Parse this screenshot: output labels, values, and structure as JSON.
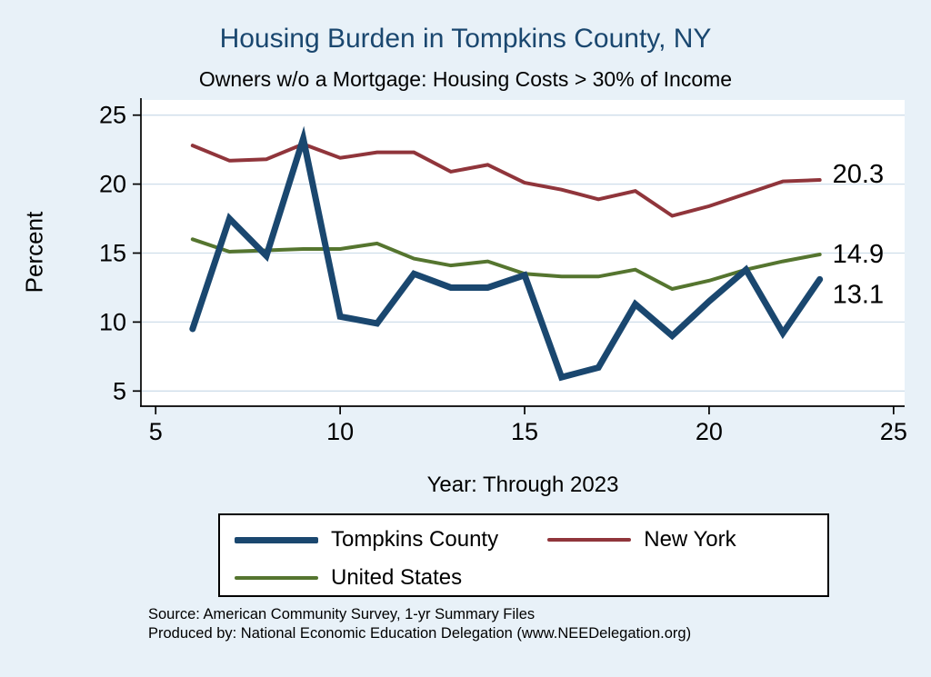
{
  "title": "Housing Burden in Tompkins County, NY",
  "subtitle": "Owners w/o a Mortgage: Housing Costs > 30% of Income",
  "ylabel": "Percent",
  "xlabel": "Year: Through 2023",
  "colors": {
    "background": "#e8f1f8",
    "title": "#1a476f",
    "grid": "#cfdeea",
    "tompkins_county": "#1a476f",
    "new_york": "#90353b",
    "united_states": "#55752f"
  },
  "chart_data": {
    "type": "line",
    "title": "Housing Burden in Tompkins County, NY",
    "subtitle": "Owners w/o a Mortgage: Housing Costs > 30% of Income",
    "xlabel": "Year: Through 2023",
    "ylabel": "Percent",
    "x": [
      6,
      7,
      8,
      9,
      10,
      11,
      12,
      13,
      14,
      15,
      16,
      17,
      18,
      19,
      20,
      21,
      22,
      23
    ],
    "series": [
      {
        "name": "Tompkins County",
        "color": "#1a476f",
        "width": 7,
        "end_label": "13.1",
        "label_dy": 17,
        "values": [
          9.5,
          17.5,
          14.8,
          23.3,
          10.4,
          9.9,
          13.5,
          12.5,
          12.5,
          13.4,
          6.0,
          6.7,
          11.3,
          9.0,
          11.5,
          13.8,
          9.2,
          13.1
        ]
      },
      {
        "name": "New York",
        "color": "#90353b",
        "width": 4,
        "end_label": "20.3",
        "label_dy": -6,
        "values": [
          22.8,
          21.7,
          21.8,
          22.9,
          21.9,
          22.3,
          22.3,
          20.9,
          21.4,
          20.1,
          19.6,
          18.9,
          19.5,
          17.7,
          18.4,
          19.3,
          20.2,
          20.3
        ]
      },
      {
        "name": "United States",
        "color": "#55752f",
        "width": 4,
        "end_label": "14.9",
        "label_dy": 0,
        "values": [
          16.0,
          15.1,
          15.2,
          15.3,
          15.3,
          15.7,
          14.6,
          14.1,
          14.4,
          13.5,
          13.3,
          13.3,
          13.8,
          12.4,
          13.0,
          13.8,
          14.4,
          14.9
        ]
      }
    ],
    "draw_order": [
      1,
      2,
      0
    ],
    "xticks": [
      5,
      10,
      15,
      20,
      25
    ],
    "yticks": [
      5,
      10,
      15,
      20,
      25
    ],
    "xlim": [
      4.6,
      25.3
    ],
    "ylim": [
      3.9,
      26.1
    ],
    "grid": "horizontal",
    "legend_position": "bottom"
  },
  "legend": {
    "items": [
      {
        "label": "Tompkins County",
        "color": "#1a476f",
        "thick": true
      },
      {
        "label": "New York",
        "color": "#90353b",
        "thick": false
      },
      {
        "label": "United States",
        "color": "#55752f",
        "thick": false
      }
    ]
  },
  "source": {
    "line1": "Source: American Community Survey, 1-yr Summary Files",
    "line2": "Produced by: National Economic Education Delegation (www.NEEDelegation.org)"
  }
}
